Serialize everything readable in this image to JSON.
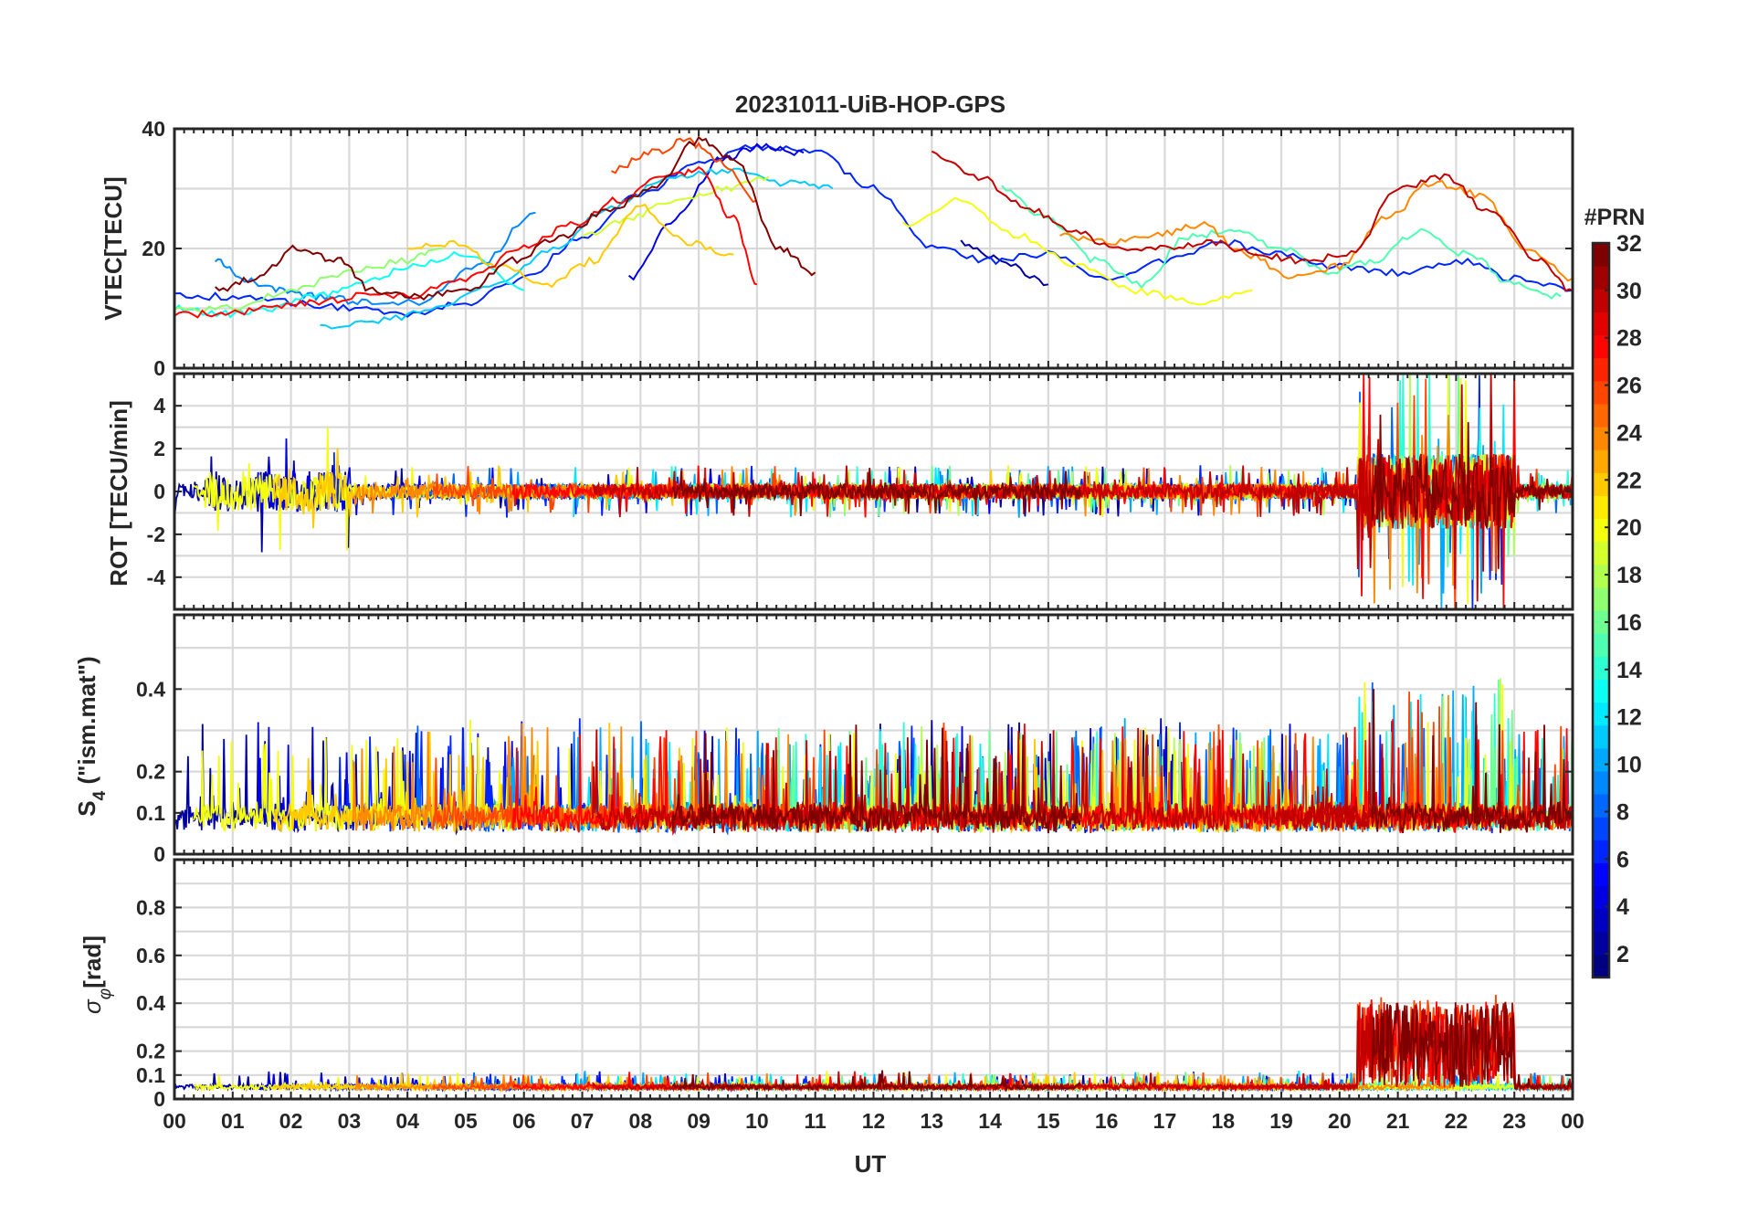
{
  "figure": {
    "title": "20231011-UiB-HOP-GPS",
    "xlabel": "UT"
  },
  "chart_data": [
    {
      "type": "line",
      "panel": "vtec",
      "ylabel": "VTEC[TECU]",
      "ylim": [
        0,
        40
      ],
      "yticks": [
        "0",
        "20",
        "40"
      ],
      "xlim": [
        0,
        24
      ],
      "grid": true,
      "series": [
        {
          "prn": 2,
          "x": [
            13.5,
            14.2,
            15.0
          ],
          "y": [
            21,
            18,
            14
          ]
        },
        {
          "prn": 6,
          "x": [
            0,
            1,
            2,
            3,
            4,
            5,
            6,
            7,
            8,
            9,
            10,
            11,
            12,
            13,
            14,
            15,
            16,
            17,
            18,
            19,
            20,
            21,
            22,
            23,
            24
          ],
          "y": [
            12,
            12,
            11,
            10,
            9,
            11,
            15,
            22,
            29,
            34,
            37,
            36,
            30,
            20,
            18,
            19,
            15,
            18,
            21,
            19,
            17,
            16,
            18,
            15,
            13
          ]
        },
        {
          "prn": 4,
          "x": [
            7.8,
            8.6,
            9.4,
            10.0,
            10.8
          ],
          "y": [
            15,
            25,
            35,
            37,
            36
          ]
        },
        {
          "prn": 9,
          "x": [
            0.7,
            1.2,
            1.8,
            2.5,
            3.3,
            4.2,
            5.2,
            6.2
          ],
          "y": [
            18,
            15,
            13,
            12,
            11,
            11,
            17,
            26
          ]
        },
        {
          "prn": 11,
          "x": [
            2.5,
            3.5,
            4.5,
            5.5,
            6.5,
            7.5,
            8.5,
            9.5,
            10.5,
            11.3
          ],
          "y": [
            7,
            8,
            10,
            14,
            20,
            27,
            32,
            33,
            31,
            30
          ]
        },
        {
          "prn": 13,
          "x": [
            0,
            0.8,
            1.6,
            2.4,
            3.2,
            4.0,
            5.0,
            6.0
          ],
          "y": [
            10,
            9,
            10,
            12,
            14,
            17,
            19,
            13
          ]
        },
        {
          "prn": 15,
          "x": [
            14.2,
            15.0,
            15.8,
            16.6,
            17.4,
            18.2,
            19.0,
            19.8,
            20.6,
            21.4,
            22.2,
            23.0,
            23.8
          ],
          "y": [
            30,
            25,
            18,
            14,
            22,
            23,
            20,
            16,
            18,
            23,
            19,
            14,
            12
          ]
        },
        {
          "prn": 17,
          "x": [
            0,
            1.0,
            2.0,
            3.0,
            4.0,
            4.6
          ],
          "y": [
            10,
            10,
            13,
            16,
            18,
            20
          ]
        },
        {
          "prn": 19,
          "x": [
            7.0,
            7.8,
            8.6,
            9.4,
            10.2
          ],
          "y": [
            22,
            25,
            28,
            30,
            32
          ]
        },
        {
          "prn": 20,
          "x": [
            12.5,
            13.5,
            14.5,
            15.5,
            16.5,
            17.5,
            18.5
          ],
          "y": [
            24,
            28,
            22,
            17,
            13,
            11,
            13
          ]
        },
        {
          "prn": 22,
          "x": [
            4.0,
            4.8,
            5.6,
            6.4,
            7.2,
            8.0,
            8.8,
            9.6
          ],
          "y": [
            20,
            21,
            17,
            14,
            18,
            27,
            21,
            19
          ]
        },
        {
          "prn": 24,
          "x": [
            15.2,
            16.0,
            16.8,
            17.6,
            18.4,
            19.2,
            20.0,
            20.8,
            21.6,
            22.4,
            23.2,
            24.0
          ],
          "y": [
            22,
            21,
            22,
            24,
            19,
            15,
            17,
            25,
            31,
            29,
            20,
            15
          ]
        },
        {
          "prn": 26,
          "x": [
            7.5,
            8.2,
            8.8,
            9.3,
            10.0
          ],
          "y": [
            33,
            36,
            38,
            35,
            28
          ]
        },
        {
          "prn": 28,
          "x": [
            0,
            0.8,
            1.6,
            2.4,
            3.2,
            4.0,
            5.0,
            6.0,
            6.8,
            7.6,
            8.4,
            9.0,
            9.6,
            10.0
          ],
          "y": [
            9,
            9,
            10,
            11,
            12,
            12,
            15,
            20,
            24,
            28,
            32,
            33,
            25,
            14
          ]
        },
        {
          "prn": 30,
          "x": [
            13.0,
            13.8,
            14.6,
            15.4,
            16.2,
            17.0,
            17.8,
            18.6,
            19.4,
            20.2,
            21.0,
            21.8,
            22.6,
            23.4,
            24.0
          ],
          "y": [
            36,
            32,
            27,
            23,
            20,
            20,
            21,
            19,
            18,
            19,
            30,
            32,
            26,
            18,
            13
          ]
        },
        {
          "prn": 32,
          "x": [
            0.7,
            1.4,
            2.1,
            2.8,
            3.4,
            4.2,
            5.0,
            5.8,
            6.6,
            7.4,
            8.2,
            9.0,
            9.6,
            10.4,
            11.0
          ],
          "y": [
            13,
            15,
            20,
            18,
            13,
            12,
            13,
            18,
            22,
            26,
            30,
            38,
            35,
            20,
            16
          ]
        }
      ]
    },
    {
      "type": "line",
      "panel": "rot",
      "ylabel": "ROT [TECU/min]",
      "ylim": [
        -5.5,
        5.5
      ],
      "yticks": [
        "-4",
        "-2",
        "0",
        "2",
        "4"
      ],
      "xlim": [
        0,
        24
      ],
      "grid": true
    },
    {
      "type": "line",
      "panel": "s4",
      "ylabel": "S4 (\"ism.mat\")",
      "ylabel_parts": [
        "S",
        "4",
        " (\"ism.mat\")"
      ],
      "ylim": [
        0,
        0.58
      ],
      "yticks": [
        "0",
        "0.1",
        "0.2",
        "0.4"
      ],
      "xlim": [
        0,
        24
      ],
      "grid": true
    },
    {
      "type": "line",
      "panel": "sigma_phi",
      "ylabel": "σφ[rad]",
      "ylabel_parts": [
        "σ",
        "φ",
        "[rad]"
      ],
      "ylim": [
        0,
        1.0
      ],
      "yticks": [
        "0",
        "0.1",
        "0.2",
        "0.4",
        "0.6",
        "0.8"
      ],
      "xlim": [
        0,
        24
      ],
      "grid": true,
      "xticks": [
        "00",
        "01",
        "02",
        "03",
        "04",
        "05",
        "06",
        "07",
        "08",
        "09",
        "10",
        "11",
        "12",
        "13",
        "14",
        "15",
        "16",
        "17",
        "18",
        "19",
        "20",
        "21",
        "22",
        "23",
        "00"
      ]
    }
  ],
  "colorbar": {
    "label": "#PRN",
    "colormap": "jet",
    "range": [
      1,
      32
    ],
    "ticks": [
      "2",
      "4",
      "6",
      "8",
      "10",
      "12",
      "14",
      "16",
      "18",
      "20",
      "22",
      "24",
      "26",
      "28",
      "30",
      "32"
    ]
  }
}
